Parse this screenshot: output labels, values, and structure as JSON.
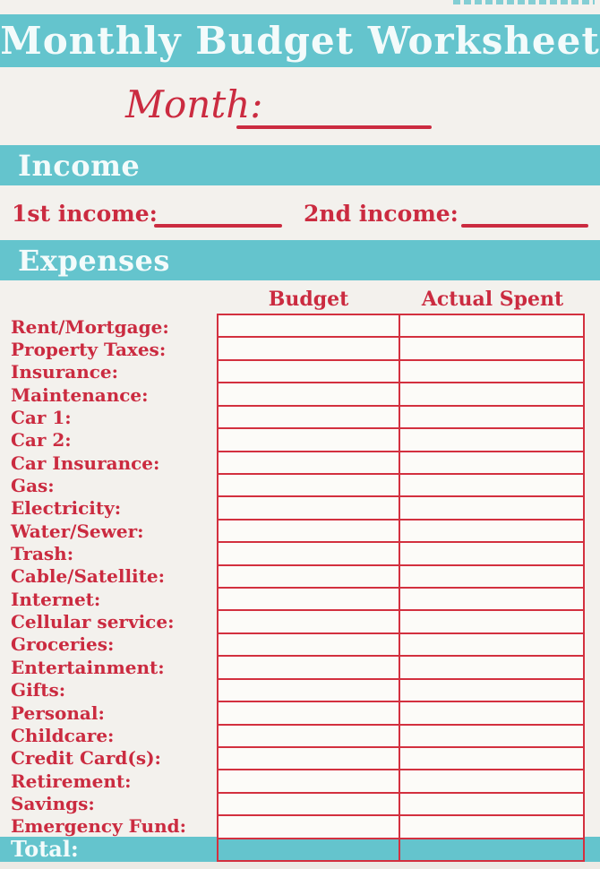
{
  "header": {
    "title": "Monthly Budget Worksheet"
  },
  "month": {
    "label": "Month:",
    "value": ""
  },
  "sections": {
    "income": "Income",
    "expenses": "Expenses"
  },
  "income": {
    "first_label": "1st income:",
    "first_value": "",
    "second_label": "2nd income:",
    "second_value": ""
  },
  "expenses_table": {
    "column_headers": [
      "Budget",
      "Actual Spent"
    ],
    "rows": [
      {
        "label": "Rent/Mortgage:",
        "budget": "",
        "actual": ""
      },
      {
        "label": "Property Taxes:",
        "budget": "",
        "actual": ""
      },
      {
        "label": "Insurance:",
        "budget": "",
        "actual": ""
      },
      {
        "label": "Maintenance:",
        "budget": "",
        "actual": ""
      },
      {
        "label": "Car 1:",
        "budget": "",
        "actual": ""
      },
      {
        "label": "Car 2:",
        "budget": "",
        "actual": ""
      },
      {
        "label": "Car Insurance:",
        "budget": "",
        "actual": ""
      },
      {
        "label": "Gas:",
        "budget": "",
        "actual": ""
      },
      {
        "label": "Electricity:",
        "budget": "",
        "actual": ""
      },
      {
        "label": "Water/Sewer:",
        "budget": "",
        "actual": ""
      },
      {
        "label": "Trash:",
        "budget": "",
        "actual": ""
      },
      {
        "label": "Cable/Satellite:",
        "budget": "",
        "actual": ""
      },
      {
        "label": "Internet:",
        "budget": "",
        "actual": ""
      },
      {
        "label": "Cellular service:",
        "budget": "",
        "actual": ""
      },
      {
        "label": "Groceries:",
        "budget": "",
        "actual": ""
      },
      {
        "label": "Entertainment:",
        "budget": "",
        "actual": ""
      },
      {
        "label": "Gifts:",
        "budget": "",
        "actual": ""
      },
      {
        "label": "Personal:",
        "budget": "",
        "actual": ""
      },
      {
        "label": "Childcare:",
        "budget": "",
        "actual": ""
      },
      {
        "label": "Credit Card(s):",
        "budget": "",
        "actual": ""
      },
      {
        "label": "Retirement:",
        "budget": "",
        "actual": ""
      },
      {
        "label": "Savings:",
        "budget": "",
        "actual": ""
      },
      {
        "label": "Emergency Fund:",
        "budget": "",
        "actual": ""
      }
    ],
    "total": {
      "label": "Total:",
      "budget": "",
      "actual": ""
    }
  },
  "colors": {
    "teal": "#64c4cd",
    "red_text": "#cb2b40",
    "red_border": "#d3303f",
    "banner_text": "#f3fbfb"
  }
}
